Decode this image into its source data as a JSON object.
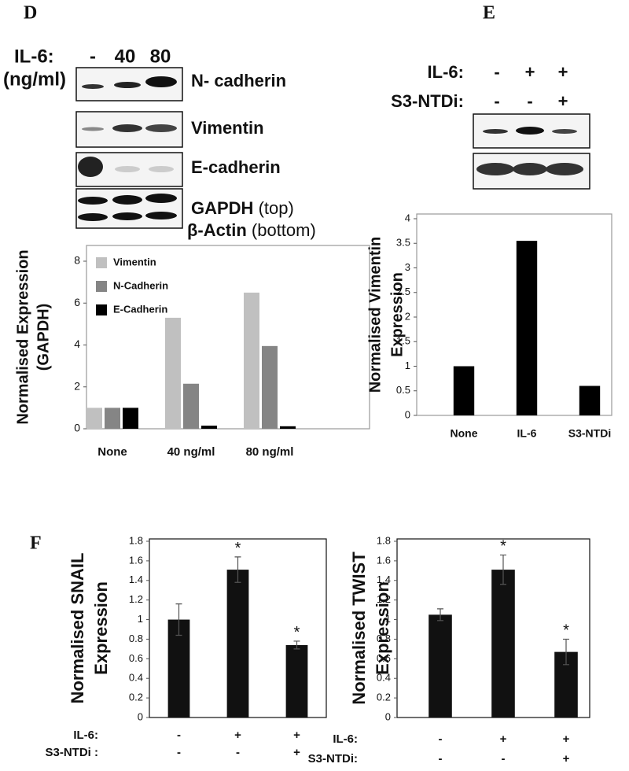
{
  "panels": [
    {
      "letter": "D"
    },
    {
      "letter": "E"
    },
    {
      "letter": "F"
    }
  ],
  "blot_d": {
    "row_label": "IL-6:",
    "unit": "(ng/ml)",
    "doses": [
      "-",
      "40",
      "80"
    ],
    "bands": [
      "N- cadherin",
      "Vimentin",
      "E-cadherin"
    ],
    "gapdh": "GAPDH",
    "gapdh_note": "(top)",
    "actin": "β-Actin",
    "actin_note": "(bottom)"
  },
  "blot_e": {
    "rows": [
      {
        "label": "IL-6:",
        "marks": [
          "-",
          "+",
          "+"
        ]
      },
      {
        "label": "S3-NTDi:",
        "marks": [
          "-",
          "-",
          "+"
        ]
      }
    ]
  },
  "chart_data": [
    {
      "type": "bar",
      "y_label": [
        "Normalised Expression",
        "(GAPDH)"
      ],
      "categories": [
        "None",
        "40 ng/ml",
        "80 ng/ml"
      ],
      "series": [
        {
          "name": "Vimentin",
          "color": "#c0c0c0",
          "values": [
            1,
            5.3,
            6.5
          ]
        },
        {
          "name": "N-Cadherin",
          "color": "#858585",
          "values": [
            1,
            2.15,
            3.95
          ]
        },
        {
          "name": "E-Cadherin",
          "color": "#000000",
          "values": [
            1,
            0.15,
            0.12
          ]
        }
      ],
      "ylim": [
        0,
        8
      ],
      "yticks": [
        0,
        2,
        4,
        6,
        8
      ],
      "legend": "top-left"
    },
    {
      "type": "bar",
      "y_label": [
        "Normalised Vimentin",
        "Expression"
      ],
      "categories": [
        "None",
        "IL-6",
        "S3-NTDi"
      ],
      "values": [
        1,
        3.55,
        0.6
      ],
      "color": "#000000",
      "ylim": [
        0,
        4
      ],
      "yticks": [
        0,
        0.5,
        1,
        1.5,
        2,
        2.5,
        3,
        3.5,
        4
      ]
    },
    {
      "type": "bar",
      "y_label": [
        "Normalised SNAIL",
        "Expression"
      ],
      "values": [
        1,
        1.51,
        0.74
      ],
      "errors": [
        0.16,
        0.13,
        0.04
      ],
      "significance": [
        null,
        "*",
        "*"
      ],
      "color": "#111111",
      "conditions": [
        {
          "label": "IL-6:",
          "marks": [
            "-",
            "+",
            "+"
          ]
        },
        {
          "label": "S3-NTDi :",
          "marks": [
            "-",
            "-",
            "+"
          ]
        }
      ],
      "ylim": [
        0,
        1.8
      ],
      "yticks": [
        0,
        0.2,
        0.4,
        0.6,
        0.8,
        1,
        1.2,
        1.4,
        1.6,
        1.8
      ]
    },
    {
      "type": "bar",
      "y_label": [
        "Normalised TWIST",
        "Expression"
      ],
      "values": [
        1.05,
        1.51,
        0.67
      ],
      "errors": [
        0.06,
        0.15,
        0.13
      ],
      "significance": [
        null,
        "*",
        "*"
      ],
      "color": "#111111",
      "conditions": [
        {
          "label": "IL-6:",
          "marks": [
            "-",
            "+",
            "+"
          ]
        },
        {
          "label": "S3-NTDi:",
          "marks": [
            "-",
            "-",
            "+"
          ]
        }
      ],
      "ylim": [
        0,
        1.8
      ],
      "yticks": [
        0,
        0.2,
        0.4,
        0.6,
        0.8,
        1,
        1.2,
        1.4,
        1.6,
        1.8
      ]
    }
  ]
}
